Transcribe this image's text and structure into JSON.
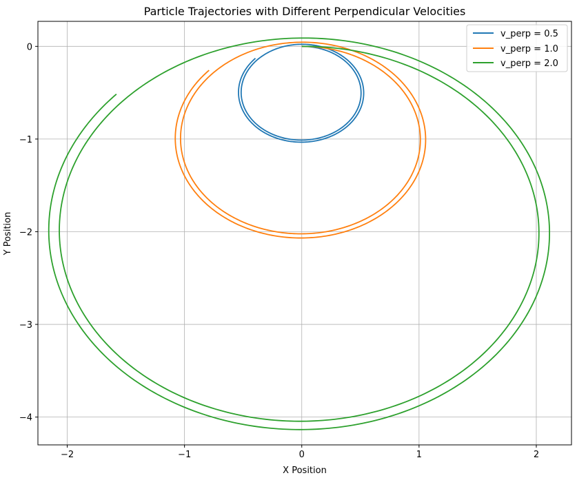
{
  "chart_data": {
    "type": "line",
    "title": "Particle Trajectories with Different Perpendicular Velocities",
    "xlabel": "X Position",
    "ylabel": "Y Position",
    "xlim": [
      -2.25,
      2.3
    ],
    "ylim": [
      -4.3,
      0.27
    ],
    "xticks": [
      -2,
      -1,
      0,
      1,
      2
    ],
    "xtick_labels": [
      "−2",
      "−1",
      "0",
      "1",
      "2"
    ],
    "yticks": [
      0,
      -1,
      -2,
      -3,
      -4
    ],
    "ytick_labels": [
      "0",
      "−1",
      "−2",
      "−3",
      "−4"
    ],
    "grid": true,
    "legend_position": "top-right",
    "series": [
      {
        "name": "v_perp = 0.5",
        "color": "#1f77b4",
        "radius": 0.5,
        "growth": 0.045,
        "turns": 1.87
      },
      {
        "name": "v_perp = 1.0",
        "color": "#ff7f0e",
        "radius": 1.0,
        "growth": 0.045,
        "turns": 1.87
      },
      {
        "name": "v_perp = 2.0",
        "color": "#2ca02c",
        "radius": 2.0,
        "growth": 0.045,
        "turns": 1.87
      }
    ]
  }
}
